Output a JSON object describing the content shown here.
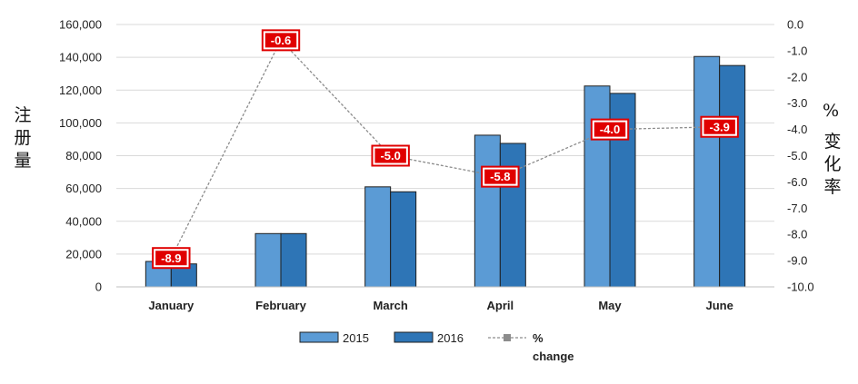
{
  "chart_data": {
    "type": "bar",
    "categories": [
      "January",
      "February",
      "March",
      "April",
      "May",
      "June"
    ],
    "series": [
      {
        "name": "2015",
        "kind": "bar",
        "axis": "left",
        "color": "#5B9BD5",
        "values": [
          15500,
          32500,
          61000,
          92500,
          122500,
          140500
        ]
      },
      {
        "name": "2016",
        "kind": "bar",
        "axis": "left",
        "color": "#2E75B6",
        "values": [
          14000,
          32500,
          58000,
          87500,
          118000,
          135000
        ]
      },
      {
        "name_lines": [
          "%",
          "change"
        ],
        "kind": "line",
        "axis": "right",
        "color": "#8C8C8C",
        "values": [
          -8.9,
          -0.6,
          -5.0,
          -5.8,
          -4.0,
          -3.9
        ],
        "labels": [
          "-8.9",
          "-0.6",
          "-5.0",
          "-5.8",
          "-4.0",
          "-3.9"
        ]
      }
    ],
    "ylabel": "注册量",
    "y2label_parts": [
      "%",
      "变化率"
    ],
    "ylim": [
      0,
      160000
    ],
    "y2lim": [
      -10,
      0
    ],
    "yticks": [
      "0",
      "20,000",
      "40,000",
      "60,000",
      "80,000",
      "100,000",
      "120,000",
      "140,000",
      "160,000"
    ],
    "y2ticks": [
      "0.0",
      "-1.0",
      "-2.0",
      "-3.0",
      "-4.0",
      "-5.0",
      "-6.0",
      "-7.0",
      "-8.0",
      "-9.0",
      "-10.0"
    ],
    "grid": true,
    "legend_position": "bottom",
    "label_box_color": "#E00000"
  }
}
